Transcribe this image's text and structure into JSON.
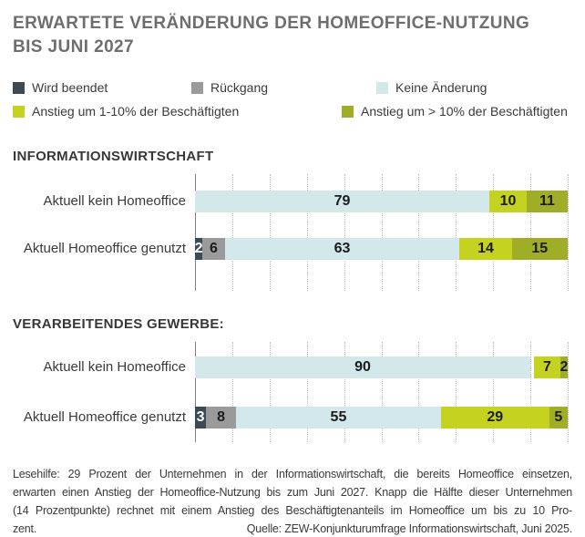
{
  "title": {
    "line1": "ERWARTETE VERÄNDERUNG DER HOMEOFFICE-NUTZUNG",
    "line2": "BIS JUNI 2027"
  },
  "colors": {
    "beendet": "#3c4a56",
    "rueckgang": "#9a9a9a",
    "keine": "#d2e8ea",
    "a1": "#c5d320",
    "a10": "#a0ad27",
    "gap": "transparent"
  },
  "legend": {
    "labels": {
      "beendet": "Wird beendet",
      "rueckgang": "Rückgang",
      "keine": "Keine Änderung",
      "a1": "Anstieg um 1-10% der Beschäftigten",
      "a10": "Anstieg um > 10% der Beschäftigten"
    }
  },
  "sections": [
    {
      "header": "INFORMATIONSWIRTSCHAFT",
      "rows": [
        {
          "label": "Aktuell kein Homeoffice",
          "segments": [
            {
              "series": "keine",
              "value": 79
            },
            {
              "series": "a1",
              "value": 10
            },
            {
              "series": "a10",
              "value": 11
            }
          ]
        },
        {
          "label": "Aktuell Homeoffice genutzt",
          "segments": [
            {
              "series": "beendet",
              "value": 2
            },
            {
              "series": "rueckgang",
              "value": 6
            },
            {
              "series": "keine",
              "value": 63
            },
            {
              "series": "a1",
              "value": 14
            },
            {
              "series": "a10",
              "value": 15
            }
          ]
        }
      ]
    },
    {
      "header": "VERARBEITENDES GEWERBE:",
      "rows": [
        {
          "label": "Aktuell kein Homeoffice",
          "segments": [
            {
              "series": "keine",
              "value": 90
            },
            {
              "series": "gap",
              "value": 1
            },
            {
              "series": "a1",
              "value": 7
            },
            {
              "series": "a10",
              "value": 2
            }
          ]
        },
        {
          "label": "Aktuell Homeoffice genutzt",
          "segments": [
            {
              "series": "beendet",
              "value": 3
            },
            {
              "series": "rueckgang",
              "value": 8
            },
            {
              "series": "keine",
              "value": 55
            },
            {
              "series": "a1",
              "value": 29
            },
            {
              "series": "a10",
              "value": 5
            }
          ]
        }
      ]
    }
  ],
  "chart_data": [
    {
      "type": "bar",
      "orientation": "horizontal",
      "stacked": true,
      "title": "INFORMATIONSWIRTSCHAFT",
      "categories": [
        "Aktuell kein Homeoffice",
        "Aktuell Homeoffice genutzt"
      ],
      "series": [
        {
          "name": "Wird beendet",
          "color": "#3c4a56",
          "values": [
            0,
            2
          ]
        },
        {
          "name": "Rückgang",
          "color": "#9a9a9a",
          "values": [
            0,
            6
          ]
        },
        {
          "name": "Keine Änderung",
          "color": "#d2e8ea",
          "values": [
            79,
            63
          ]
        },
        {
          "name": "Anstieg um 1-10% der Beschäftigten",
          "color": "#c5d320",
          "values": [
            10,
            14
          ]
        },
        {
          "name": "Anstieg um > 10% der Beschäftigten",
          "color": "#a0ad27",
          "values": [
            11,
            15
          ]
        }
      ],
      "xlim": [
        0,
        100
      ],
      "unit": "percent",
      "gridlines": {
        "interval": 10,
        "style": "dotted"
      },
      "legend_position": "top"
    },
    {
      "type": "bar",
      "orientation": "horizontal",
      "stacked": true,
      "title": "VERARBEITENDES GEWERBE:",
      "categories": [
        "Aktuell kein Homeoffice",
        "Aktuell Homeoffice genutzt"
      ],
      "series": [
        {
          "name": "Wird beendet",
          "color": "#3c4a56",
          "values": [
            0,
            3
          ]
        },
        {
          "name": "Rückgang",
          "color": "#9a9a9a",
          "values": [
            0,
            8
          ]
        },
        {
          "name": "Keine Änderung",
          "color": "#d2e8ea",
          "values": [
            90,
            55
          ]
        },
        {
          "name": "Anstieg um 1-10% der Beschäftigten",
          "color": "#c5d320",
          "values": [
            7,
            29
          ]
        },
        {
          "name": "Anstieg um > 10% der Beschäftigten",
          "color": "#a0ad27",
          "values": [
            2,
            5
          ]
        }
      ],
      "xlim": [
        0,
        100
      ],
      "unit": "percent",
      "gridlines": {
        "interval": 10,
        "style": "dotted"
      },
      "legend_position": "top"
    }
  ],
  "footer": {
    "lines": [
      "Lesehilfe: 29 Prozent der Unternehmen in der Informationswirtschaft, die bereits Homeoffice einsetzen,",
      "erwarten einen Anstieg der Homeoffice-Nutzung bis zum Juni 2027. Knapp die Hälfte dieser Unternehmen",
      "(14 Prozentpunkte) rechnet mit einem Anstieg des Beschäftigtenanteils im Homeoffice um bis zu 10 Pro-",
      "zent."
    ],
    "source": "Quelle: ZEW-Konjunkturumfrage Informationswirtschaft, Juni 2025."
  }
}
